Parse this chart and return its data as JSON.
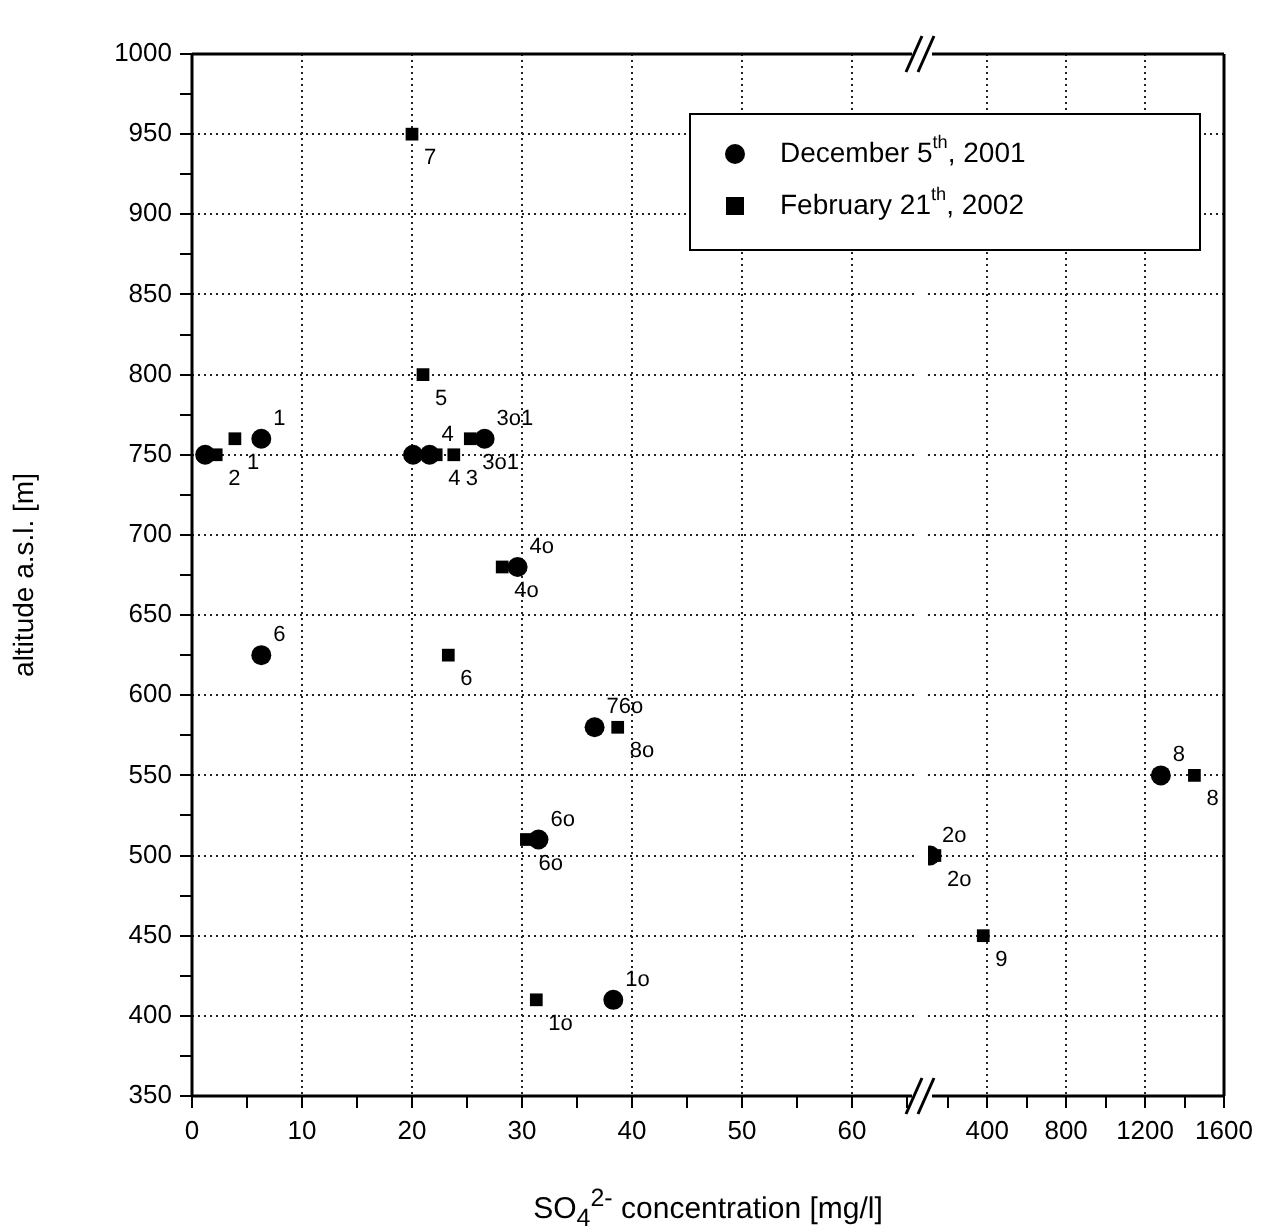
{
  "chart_data": [
    {
      "type": "scatter",
      "xlabel": "SO$_{4}$$^{2-}$ concentration [mg/l]",
      "ylabel": "altitude a.s.l. [m]",
      "xlim": [
        0,
        66
      ],
      "xticks": [
        0,
        {
          "value": 5,
          "label": null
        },
        10,
        {
          "value": 15,
          "label": null
        },
        20,
        {
          "value": 25,
          "label": null
        },
        30,
        {
          "value": 35,
          "label": null
        },
        40,
        {
          "value": 45,
          "label": null
        },
        50,
        {
          "value": 55,
          "label": null
        },
        60,
        {
          "value": 65,
          "label": null
        }
      ],
      "ylim": [
        350,
        1000
      ],
      "yticks": [
        350,
        {
          "value": 375,
          "label": null
        },
        400,
        {
          "value": 425,
          "label": null
        },
        450,
        {
          "value": 475,
          "label": null
        },
        500,
        {
          "value": 525,
          "label": null
        },
        550,
        {
          "value": 575,
          "label": null
        },
        600,
        {
          "value": 625,
          "label": null
        },
        650,
        {
          "value": 675,
          "label": null
        },
        700,
        {
          "value": 725,
          "label": null
        },
        750,
        {
          "value": 775,
          "label": null
        },
        800,
        {
          "value": 825,
          "label": null
        },
        850,
        {
          "value": 875,
          "label": null
        },
        900,
        {
          "value": 925,
          "label": null
        },
        950,
        {
          "value": 975,
          "label": null
        },
        1000
      ],
      "grid": true,
      "legend": "top right",
      "series": [
        {
          "name": "December 5$^{th}$, 2001",
          "color": "#000000",
          "marker": "circle",
          "x": [
            1.2,
            6.3,
            20.1,
            21.6,
            26.6,
            29.6,
            6.3,
            36.6,
            31.5,
            38.3
          ],
          "values": [
            750,
            760,
            750,
            750,
            760,
            680,
            625,
            580,
            510,
            410
          ]
        },
        {
          "name": "February 21$^{th}$, 2002",
          "color": "#000000",
          "marker": "square",
          "x": [
            2.2,
            3.9,
            20.0,
            21.0,
            22.2,
            23.8,
            25.3,
            28.2,
            23.3,
            38.7,
            30.4,
            31.3
          ],
          "values": [
            750,
            760,
            950,
            800,
            750,
            750,
            760,
            680,
            625,
            580,
            510,
            410
          ]
        }
      ],
      "annotations": [
        {
          "text": "1",
          "x": 6.3,
          "y": 760
        },
        {
          "text": "4",
          "x": 21.6,
          "y": 750
        },
        {
          "text": "3o1",
          "x": 26.6,
          "y": 760
        },
        {
          "text": "4o",
          "x": 29.6,
          "y": 680
        },
        {
          "text": "6",
          "x": 6.3,
          "y": 625
        },
        {
          "text": "76o",
          "x": 36.6,
          "y": 580
        },
        {
          "text": "6o",
          "x": 31.5,
          "y": 510
        },
        {
          "text": "1o",
          "x": 38.3,
          "y": 410
        },
        {
          "text": "2",
          "x": 2.2,
          "y": 750
        },
        {
          "text": "1",
          "x": 3.9,
          "y": 760
        },
        {
          "text": "7",
          "x": 20.0,
          "y": 950
        },
        {
          "text": "5",
          "x": 21.0,
          "y": 800
        },
        {
          "text": "4",
          "x": 22.2,
          "y": 750
        },
        {
          "text": "3",
          "x": 23.8,
          "y": 750
        },
        {
          "text": "3o1",
          "x": 25.3,
          "y": 760
        },
        {
          "text": "4o",
          "x": 28.2,
          "y": 680
        },
        {
          "text": "6",
          "x": 23.3,
          "y": 625
        },
        {
          "text": "8o",
          "x": 38.7,
          "y": 580
        },
        {
          "text": "6o",
          "x": 30.4,
          "y": 510
        },
        {
          "text": "1o",
          "x": 31.3,
          "y": 410
        }
      ]
    },
    {
      "type": "scatter",
      "tick_labels": "x",
      "xlim": [
        100,
        1600
      ],
      "xticks": [
        {
          "value": 200,
          "label": null
        },
        400,
        {
          "value": 600,
          "label": null
        },
        800,
        {
          "value": 1000,
          "label": null
        },
        1200,
        {
          "value": 1400,
          "label": null
        },
        1600
      ],
      "ylim": [
        350,
        1000
      ],
      "yticks": [
        350,
        400,
        450,
        500,
        550,
        600,
        650,
        700,
        750,
        800,
        850,
        900,
        950,
        1000
      ],
      "grid": true,
      "series": [
        {
          "color": "#000000",
          "marker": "circle",
          "x": [
            110,
            1280
          ],
          "values": [
            500,
            550
          ]
        },
        {
          "color": "#000000",
          "marker": "square",
          "x": [
            135,
            380,
            1450
          ],
          "values": [
            500,
            450,
            550
          ]
        }
      ],
      "annotations": [
        {
          "text": "2o",
          "x": 110,
          "y": 500
        },
        {
          "text": "2o",
          "x": 135,
          "y": 500
        },
        {
          "text": "9",
          "x": 380,
          "y": 450
        },
        {
          "text": "8",
          "x": 1280,
          "y": 550
        },
        {
          "text": "8",
          "x": 1450,
          "y": 550
        }
      ]
    }
  ]
}
